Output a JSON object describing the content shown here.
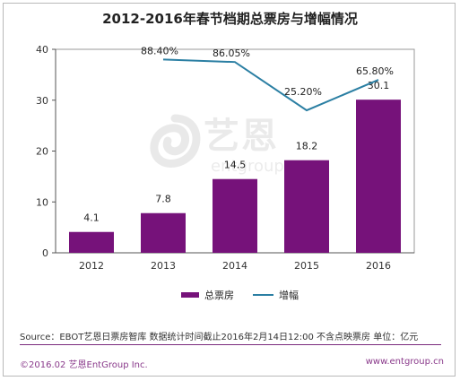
{
  "chart_data": {
    "type": "bar",
    "title": "2012-2016年春节档期总票房与增幅情况",
    "categories": [
      "2012",
      "2013",
      "2014",
      "2015",
      "2016"
    ],
    "series": [
      {
        "name": "总票房",
        "type": "bar",
        "values": [
          4.1,
          7.8,
          14.5,
          18.2,
          30.1
        ],
        "labels": [
          "4.1",
          "7.8",
          "14.5",
          "18.2",
          "30.1"
        ]
      },
      {
        "name": "增幅",
        "type": "line",
        "values": [
          null,
          38,
          37.5,
          28,
          34
        ],
        "labels": [
          "",
          "88.40%",
          "86.05%",
          "25.20%",
          "65.80%"
        ]
      }
    ],
    "ylim": [
      0,
      40
    ],
    "yticks": [
      "0",
      "10",
      "20",
      "30",
      "40"
    ],
    "grid": false,
    "legend_position": "bottom",
    "colors": {
      "bar": "#76127a",
      "line": "#2b7fa3",
      "axis": "#555555"
    }
  },
  "watermark": {
    "logo_text": "艺恩",
    "sub_text": "entgroup"
  },
  "source_note": "Source：EBOT艺恩日票房智库  数据统计时间截止2016年2月14日12:00  不含点映票房 单位：亿元",
  "footer": {
    "copyright": "©2016.02  艺恩EntGroup Inc.",
    "website": "www.entgroup.cn"
  }
}
